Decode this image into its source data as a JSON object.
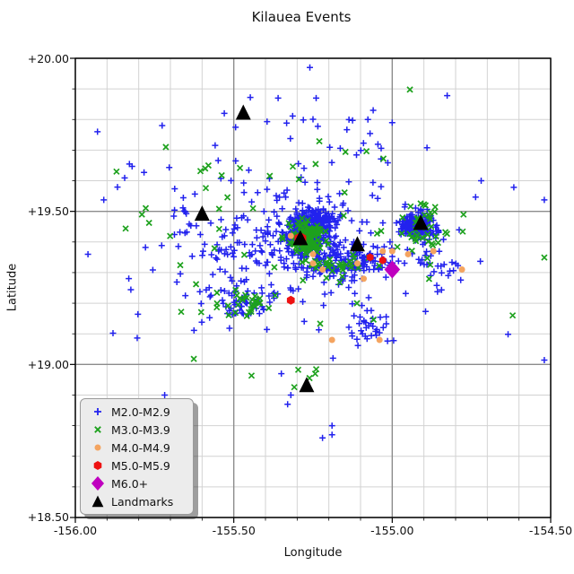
{
  "chart_data": {
    "type": "scatter",
    "title": "Kilauea Events",
    "xlabel": "Longitude",
    "ylabel": "Latitude",
    "xlim": [
      -156.0,
      -154.5
    ],
    "ylim": [
      18.5,
      20.0
    ],
    "x_ticks": [
      -156.0,
      -155.5,
      -155.0,
      -154.5
    ],
    "y_ticks": [
      20.0,
      19.5,
      19.0,
      18.5
    ],
    "x_tick_labels": [
      "-156.00",
      "-155.50",
      "-155.00",
      "-154.50"
    ],
    "y_tick_labels": [
      "+20.00",
      "+19.50",
      "+19.00",
      "+18.50"
    ],
    "minor_tick_step": 0.1,
    "grid": {
      "major": true,
      "minor": true,
      "major_color": "#8c8c8c",
      "minor_color": "#d2d2d2"
    },
    "legend": {
      "position": "lower left"
    },
    "series": [
      {
        "name": "M2.0-M2.9",
        "marker": "plus",
        "color": "#2222ee",
        "size": 7,
        "seed": 7,
        "clusters": [
          [
            -155.275,
            19.425,
            0.032,
            0.03,
            270
          ],
          [
            -155.245,
            19.475,
            0.038,
            0.018,
            90
          ],
          [
            -155.28,
            19.4,
            0.1,
            0.075,
            150
          ],
          [
            -155.17,
            19.325,
            0.05,
            0.022,
            55
          ],
          [
            -155.065,
            19.345,
            0.055,
            0.025,
            65
          ],
          [
            -154.92,
            19.452,
            0.032,
            0.023,
            160
          ],
          [
            -154.87,
            19.33,
            0.06,
            0.05,
            30
          ],
          [
            -155.46,
            19.205,
            0.055,
            0.035,
            60
          ],
          [
            -155.44,
            19.38,
            0.09,
            0.06,
            55
          ],
          [
            -155.66,
            19.49,
            0.025,
            0.035,
            14
          ],
          [
            -155.07,
            19.14,
            0.035,
            0.03,
            32
          ],
          [
            -155.3,
            19.42,
            0.3,
            0.2,
            130
          ],
          [
            -155.25,
            19.72,
            0.22,
            0.1,
            26
          ]
        ],
        "points": [
          [
            -155.26,
            19.97
          ],
          [
            -155.36,
            19.87
          ],
          [
            -155.24,
            19.87
          ],
          [
            -155.06,
            19.83
          ],
          [
            -155.0,
            19.79
          ],
          [
            -155.53,
            19.82
          ],
          [
            -155.96,
            19.36
          ],
          [
            -155.93,
            19.76
          ],
          [
            -155.35,
            18.97
          ],
          [
            -155.32,
            18.9
          ],
          [
            -155.33,
            18.87
          ],
          [
            -155.22,
            18.76
          ],
          [
            -155.19,
            18.77
          ],
          [
            -155.19,
            18.8
          ]
        ]
      },
      {
        "name": "M3.0-M3.9",
        "marker": "x",
        "color": "#1da11d",
        "size": 7,
        "seed": 5,
        "clusters": [
          [
            -155.275,
            19.415,
            0.028,
            0.024,
            130
          ],
          [
            -155.16,
            19.33,
            0.07,
            0.018,
            30
          ],
          [
            -154.905,
            19.44,
            0.05,
            0.045,
            40
          ],
          [
            -155.46,
            19.2,
            0.055,
            0.028,
            28
          ],
          [
            -155.3,
            19.4,
            0.3,
            0.21,
            50
          ],
          [
            -155.29,
            18.95,
            0.035,
            0.03,
            5
          ]
        ],
        "points": [
          [
            -155.87,
            19.63
          ],
          [
            -155.58,
            19.65
          ],
          [
            -155.79,
            19.49
          ],
          [
            -154.62,
            19.16
          ]
        ]
      },
      {
        "name": "M4.0-M4.9",
        "marker": "circle",
        "color": "#f4a460",
        "size": 7,
        "points": [
          [
            -155.32,
            19.42
          ],
          [
            -155.25,
            19.36
          ],
          [
            -155.25,
            19.33
          ],
          [
            -155.22,
            19.31
          ],
          [
            -155.11,
            19.33
          ],
          [
            -155.09,
            19.28
          ],
          [
            -155.03,
            19.37
          ],
          [
            -155.0,
            19.37
          ],
          [
            -154.95,
            19.36
          ],
          [
            -154.87,
            19.37
          ],
          [
            -154.78,
            19.31
          ],
          [
            -155.19,
            19.08
          ],
          [
            -155.04,
            19.08
          ]
        ]
      },
      {
        "name": "M5.0-M5.9",
        "marker": "hexagon",
        "color": "#ee1111",
        "size": 10,
        "points": [
          [
            -155.29,
            19.41,
            15
          ],
          [
            -155.07,
            19.35,
            9
          ],
          [
            -155.03,
            19.34,
            9
          ],
          [
            -155.32,
            19.21,
            10
          ]
        ]
      },
      {
        "name": "M6.0+",
        "marker": "diamond",
        "color": "#bf00bf",
        "size": 20,
        "points": [
          [
            -155.0,
            19.31
          ]
        ]
      },
      {
        "name": "Landmarks",
        "marker": "triangle",
        "color": "#000000",
        "size": 16,
        "points": [
          [
            -155.47,
            19.82
          ],
          [
            -155.6,
            19.49
          ],
          [
            -155.29,
            19.41
          ],
          [
            -155.11,
            19.39
          ],
          [
            -154.91,
            19.46
          ],
          [
            -155.27,
            18.93
          ]
        ]
      }
    ]
  }
}
